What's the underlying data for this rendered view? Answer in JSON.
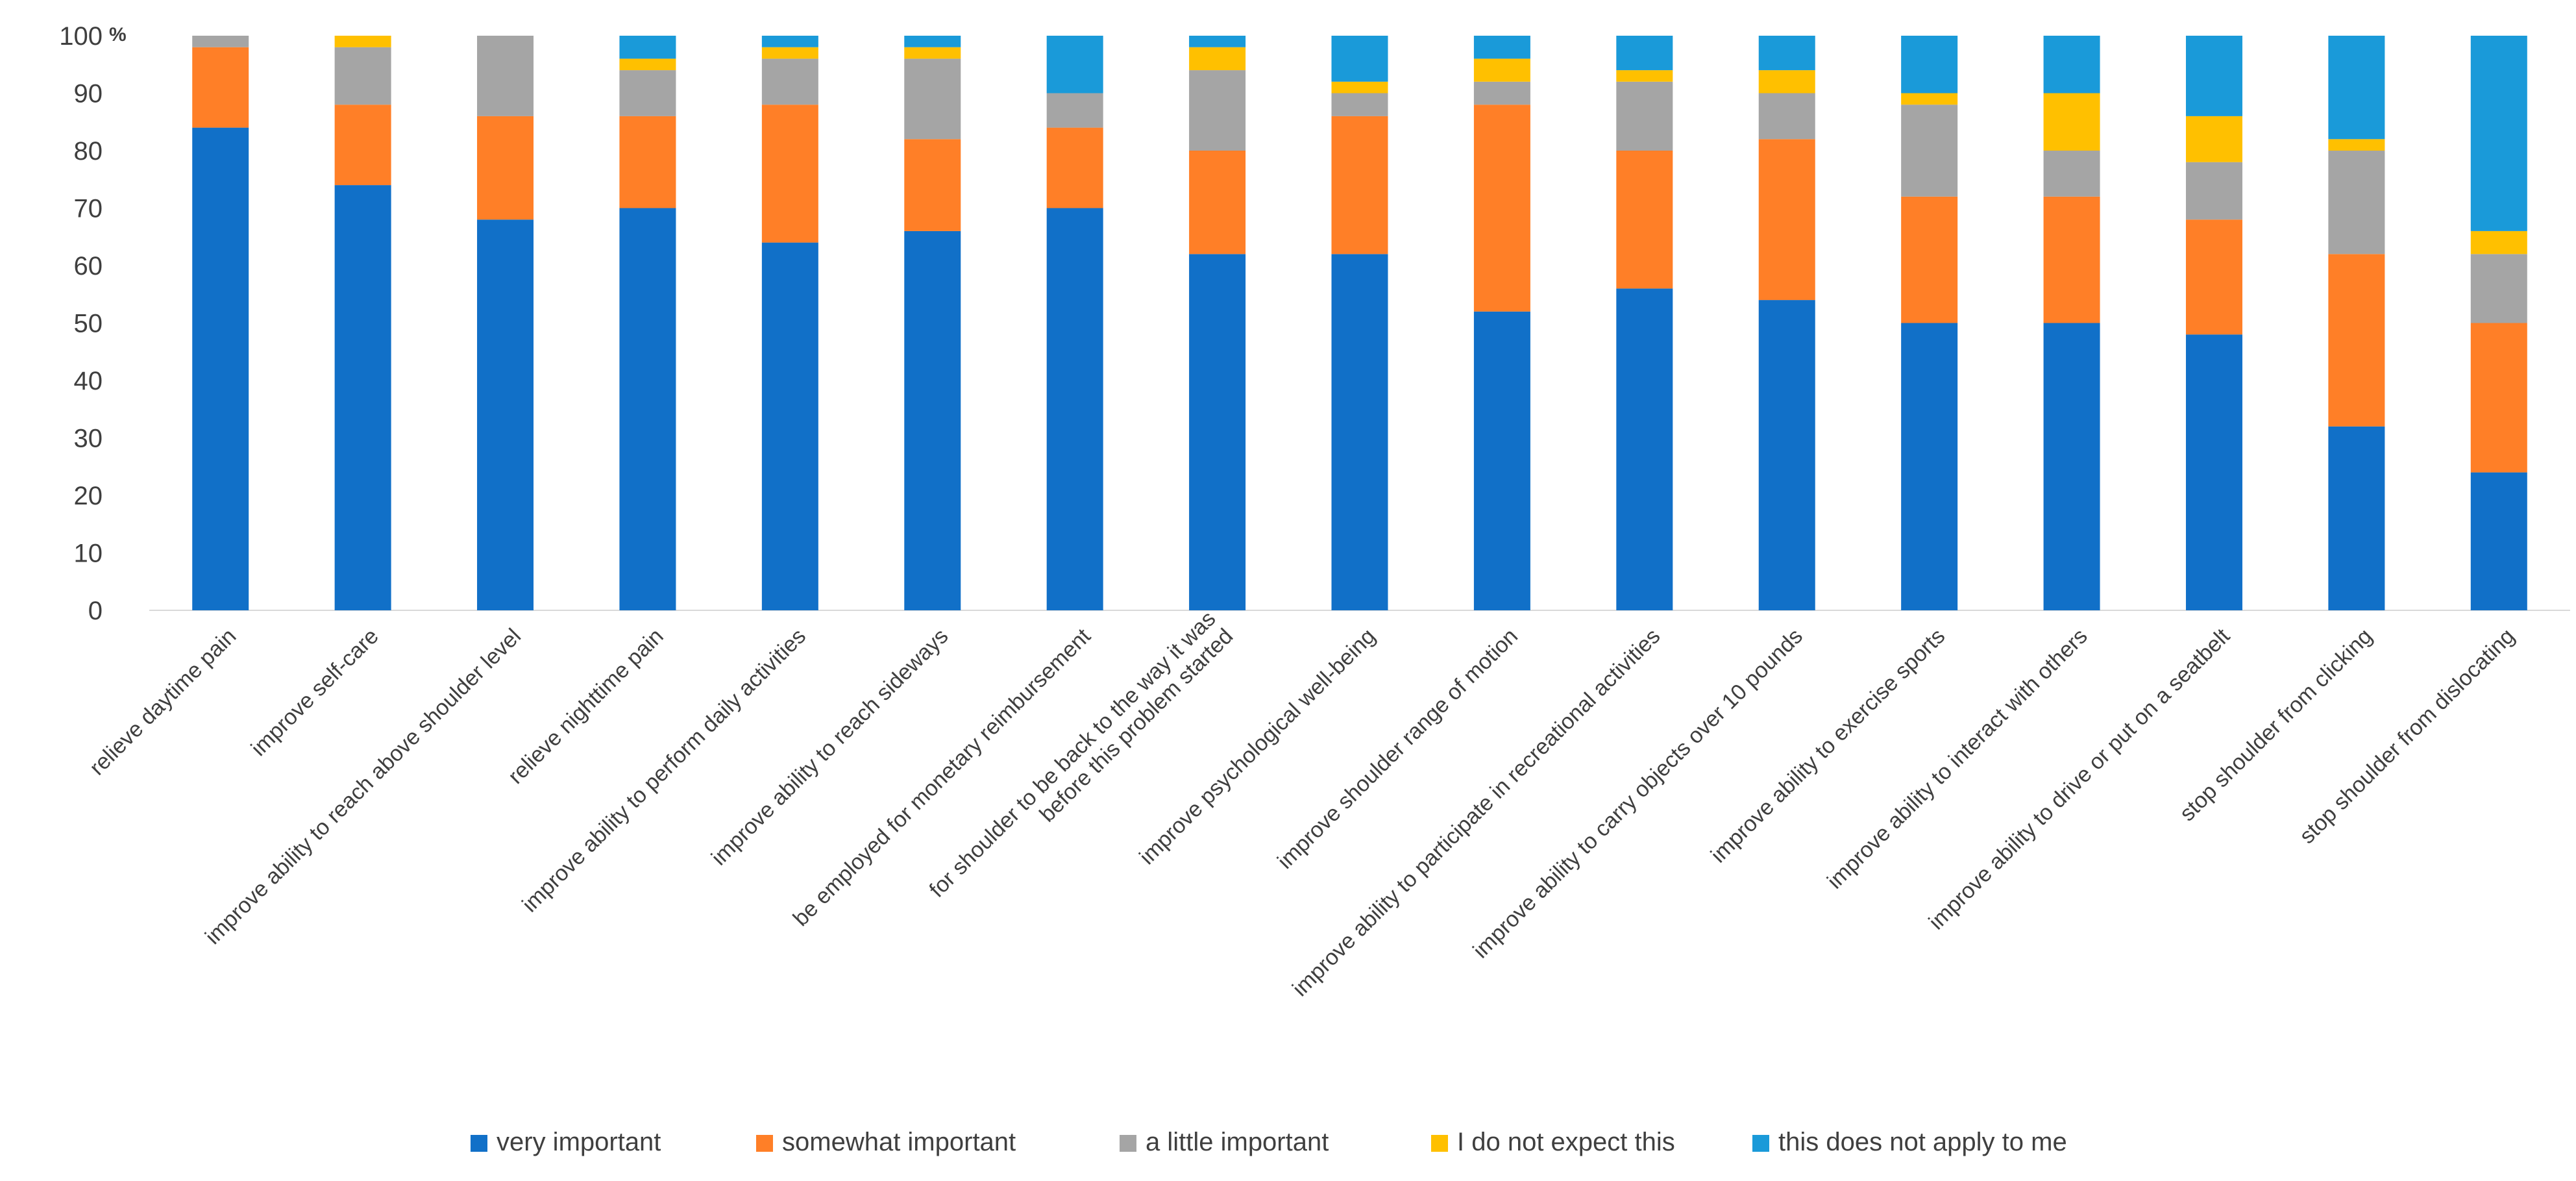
{
  "chart_data": {
    "type": "bar",
    "stacked": true,
    "title": "",
    "xlabel": "",
    "ylabel": "",
    "y_unit_label": "%",
    "ylim": [
      0,
      100
    ],
    "yticks": [
      0,
      10,
      20,
      30,
      40,
      50,
      60,
      70,
      80,
      90,
      100
    ],
    "grid": false,
    "legend_position": "bottom",
    "categories": [
      [
        "relieve daytime pain"
      ],
      [
        "improve self-care"
      ],
      [
        "improve ability to reach above shoulder level"
      ],
      [
        "relieve nighttime pain"
      ],
      [
        "improve ability to perform daily activities"
      ],
      [
        "improve ability to reach sideways"
      ],
      [
        "be employed for monetary reimbursement"
      ],
      [
        "for shoulder to be back to the way it was",
        "before this problem started"
      ],
      [
        "improve psychological well-being"
      ],
      [
        "improve shoulder range of motion"
      ],
      [
        "improve ability to participate in recreational activities"
      ],
      [
        "improve ability to carry objects over 10 pounds"
      ],
      [
        "improve ability to exercise sports"
      ],
      [
        "improve ability to interact with others"
      ],
      [
        "improve ability to drive or put on a seatbelt"
      ],
      [
        "stop shoulder from clicking"
      ],
      [
        "stop shoulder from dislocating"
      ]
    ],
    "series": [
      {
        "name": "very important",
        "color": "#1170C8",
        "values": [
          84,
          74,
          68,
          70,
          64,
          66,
          70,
          62,
          62,
          52,
          56,
          54,
          50,
          50,
          48,
          32,
          24
        ]
      },
      {
        "name": "somewhat important",
        "color": "#FF7F27",
        "values": [
          14,
          14,
          18,
          16,
          24,
          16,
          14,
          18,
          24,
          36,
          24,
          28,
          22,
          22,
          20,
          30,
          26
        ]
      },
      {
        "name": "a little important",
        "color": "#A5A5A5",
        "values": [
          2,
          10,
          14,
          8,
          8,
          14,
          6,
          14,
          4,
          4,
          12,
          8,
          16,
          8,
          10,
          18,
          12
        ]
      },
      {
        "name": "I do not expect this",
        "color": "#FFC000",
        "values": [
          0,
          2,
          0,
          2,
          2,
          2,
          0,
          4,
          2,
          4,
          2,
          4,
          2,
          10,
          8,
          2,
          4
        ]
      },
      {
        "name": "this does not apply to me",
        "color": "#1A9AD9",
        "values": [
          0,
          0,
          0,
          4,
          2,
          2,
          10,
          2,
          8,
          4,
          6,
          6,
          10,
          10,
          14,
          18,
          34
        ]
      }
    ]
  }
}
